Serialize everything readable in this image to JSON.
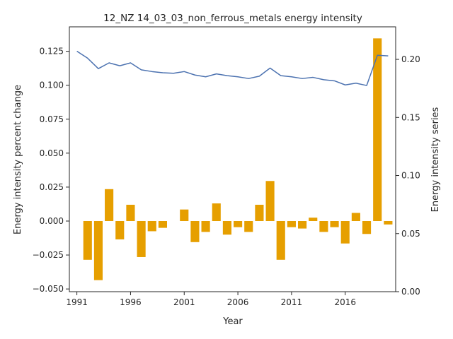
{
  "chart_data": {
    "type": "bar+line",
    "title": "12_NZ 14_03_03_non_ferrous_metals energy intensity",
    "xlabel": "Year",
    "ylabel_left": "Energy intensity percent change",
    "ylabel_right": "Energy intensity series",
    "x_ticks": [
      "1991",
      "1996",
      "2001",
      "2006",
      "2011",
      "2016"
    ],
    "y_left_ticks": [
      "−0.050",
      "−0.025",
      "0.000",
      "0.025",
      "0.050",
      "0.075",
      "0.100",
      "0.125"
    ],
    "y_right_ticks": [
      "0.00",
      "0.05",
      "0.10",
      "0.15",
      "0.20"
    ],
    "ylim_left": [
      -0.052,
      0.143
    ],
    "ylim_right": [
      0.0,
      0.228
    ],
    "xlim": [
      1990.3,
      2020.7
    ],
    "bar_color": "#e69f00",
    "line_color": "#4c72b0",
    "x": [
      1991,
      1992,
      1993,
      1994,
      1995,
      1996,
      1997,
      1998,
      1999,
      2000,
      2001,
      2002,
      2003,
      2004,
      2005,
      2006,
      2007,
      2008,
      2009,
      2010,
      2011,
      2012,
      2013,
      2014,
      2015,
      2016,
      2017,
      2018,
      2019,
      2020
    ],
    "bar_series": {
      "values": [
        null,
        -0.0285,
        -0.0435,
        0.0235,
        -0.0135,
        0.012,
        -0.0265,
        -0.0075,
        -0.005,
        null,
        0.0085,
        -0.0155,
        -0.008,
        0.013,
        -0.01,
        -0.0045,
        -0.008,
        0.012,
        0.0295,
        -0.0285,
        -0.0045,
        -0.0055,
        0.0025,
        -0.008,
        -0.0045,
        -0.0165,
        0.006,
        -0.0095,
        0.1345,
        -0.0025
      ]
    },
    "line_series": {
      "values": [
        0.207,
        0.201,
        0.192,
        0.197,
        0.1945,
        0.197,
        0.191,
        0.1895,
        0.1885,
        0.188,
        0.1895,
        0.1865,
        0.185,
        0.1875,
        0.186,
        0.185,
        0.1835,
        0.1855,
        0.1925,
        0.186,
        0.185,
        0.1835,
        0.1845,
        0.1825,
        0.1815,
        0.178,
        0.1795,
        0.1775,
        0.2035,
        0.203
      ]
    }
  }
}
